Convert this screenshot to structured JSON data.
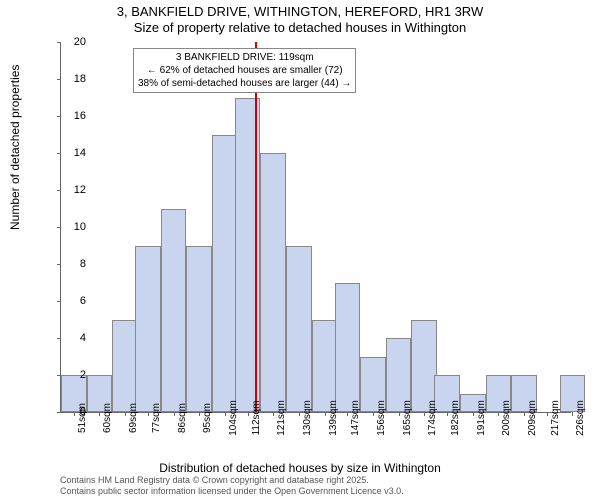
{
  "title_main": "3, BANKFIELD DRIVE, WITHINGTON, HEREFORD, HR1 3RW",
  "title_sub": "Size of property relative to detached houses in Withington",
  "ylabel": "Number of detached properties",
  "xlabel": "Distribution of detached houses by size in Withington",
  "chart": {
    "type": "histogram",
    "ylim": [
      0,
      20
    ],
    "ytick_step": 2,
    "bar_fill": "#c9d4ee",
    "bar_border": "#888888",
    "marker_color": "#cc0000",
    "marker_x_value": 119,
    "x_start": 51,
    "x_end": 230,
    "x_tick_labels": [
      "51sqm",
      "60sqm",
      "69sqm",
      "77sqm",
      "86sqm",
      "95sqm",
      "104sqm",
      "112sqm",
      "121sqm",
      "130sqm",
      "139sqm",
      "147sqm",
      "156sqm",
      "165sqm",
      "174sqm",
      "182sqm",
      "191sqm",
      "200sqm",
      "209sqm",
      "217sqm",
      "226sqm"
    ],
    "bars": [
      {
        "x": 51,
        "h": 2
      },
      {
        "x": 60,
        "h": 2
      },
      {
        "x": 69,
        "h": 5
      },
      {
        "x": 77,
        "h": 9
      },
      {
        "x": 86,
        "h": 11
      },
      {
        "x": 95,
        "h": 9
      },
      {
        "x": 104,
        "h": 15
      },
      {
        "x": 112,
        "h": 17
      },
      {
        "x": 121,
        "h": 14
      },
      {
        "x": 130,
        "h": 9
      },
      {
        "x": 139,
        "h": 5
      },
      {
        "x": 147,
        "h": 7
      },
      {
        "x": 156,
        "h": 3
      },
      {
        "x": 165,
        "h": 4
      },
      {
        "x": 174,
        "h": 5
      },
      {
        "x": 182,
        "h": 2
      },
      {
        "x": 191,
        "h": 1
      },
      {
        "x": 200,
        "h": 2
      },
      {
        "x": 209,
        "h": 2
      },
      {
        "x": 217,
        "h": 0
      },
      {
        "x": 226,
        "h": 2
      }
    ]
  },
  "annotation": {
    "line1": "3 BANKFIELD DRIVE: 119sqm",
    "line2": "← 62% of detached houses are smaller (72)",
    "line3": "38% of semi-detached houses are larger (44) →"
  },
  "attribution": {
    "line1": "Contains HM Land Registry data © Crown copyright and database right 2025.",
    "line2": "Contains public sector information licensed under the Open Government Licence v3.0."
  }
}
